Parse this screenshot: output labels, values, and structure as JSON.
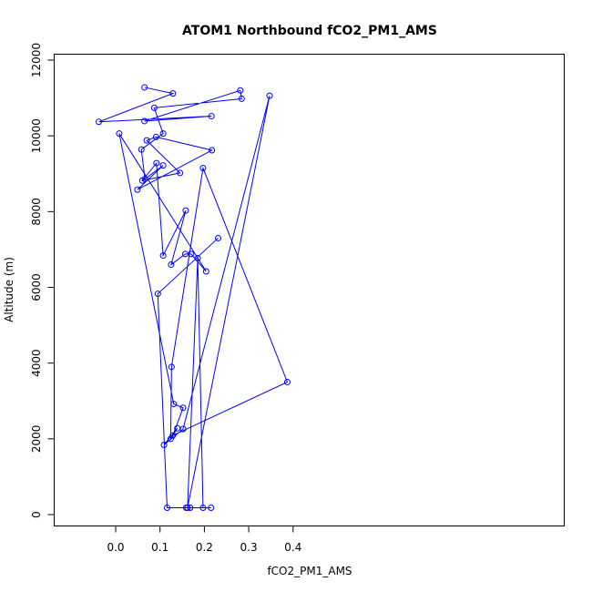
{
  "chart_data": {
    "type": "line",
    "title": "ATOM1 Northbound fCO2_PM1_AMS",
    "xlabel": "fCO2_PM1_AMS",
    "ylabel": "Altitude (m)",
    "xlim": [
      -0.05,
      0.4
    ],
    "ylim": [
      0,
      12000
    ],
    "x_ticks": [
      0.0,
      0.1,
      0.2,
      0.3,
      0.4
    ],
    "x_tick_labels": [
      "0.0",
      "0.1",
      "0.2",
      "0.3",
      "0.4"
    ],
    "y_ticks": [
      0,
      2000,
      4000,
      6000,
      8000,
      10000,
      12000
    ],
    "y_tick_labels": [
      "0",
      "2000",
      "4000",
      "6000",
      "8000",
      "10000",
      "12000"
    ],
    "grid": false,
    "color": "#0000ff",
    "marker": "open-circle",
    "series": [
      {
        "x": [
          0.065,
          0.129,
          -0.038,
          0.216,
          0.065,
          0.281,
          0.284,
          0.087,
          0.107,
          0.058,
          0.066,
          0.107,
          0.049,
          0.217,
          0.091,
          0.07,
          0.145,
          0.06,
          0.092,
          0.107,
          0.158,
          0.125,
          0.157,
          0.17,
          0.204,
          0.008,
          0.131,
          0.152,
          0.129,
          0.387,
          0.197,
          0.126,
          0.124,
          0.139,
          0.109,
          0.152,
          0.347,
          0.162,
          0.185,
          0.197,
          0.168,
          0.159,
          0.215,
          0.116,
          0.095,
          0.231
        ],
        "y": [
          11280,
          11120,
          10370,
          10520,
          10390,
          11200,
          10980,
          10740,
          10060,
          9640,
          8860,
          9220,
          8580,
          9620,
          9970,
          9880,
          9020,
          8820,
          9280,
          6840,
          8030,
          6600,
          6880,
          6880,
          6420,
          10060,
          2920,
          2820,
          2090,
          3500,
          9150,
          3900,
          2000,
          2280,
          1840,
          2260,
          11060,
          180,
          6770,
          180,
          180,
          180,
          180,
          180,
          5830,
          7300
        ]
      }
    ]
  }
}
